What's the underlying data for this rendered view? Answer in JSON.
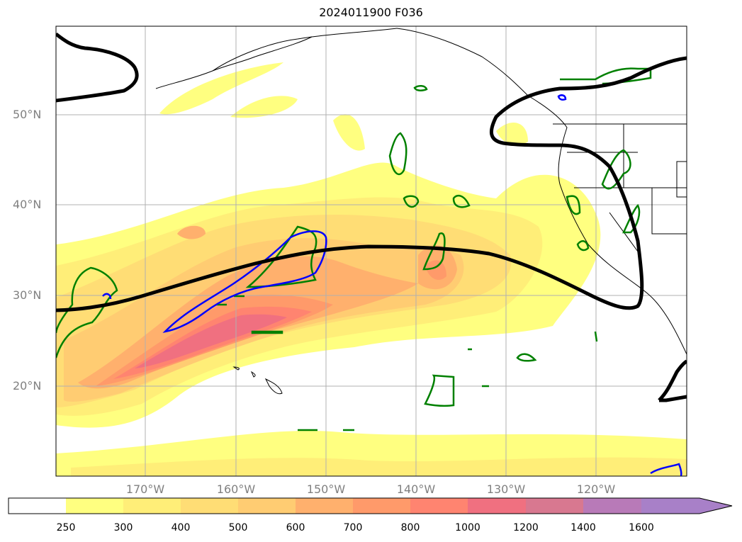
{
  "title": "2024011900 F036",
  "lat_labels": [
    "50°N",
    "40°N",
    "30°N",
    "20°N"
  ],
  "lon_labels": [
    "170°W",
    "160°W",
    "150°W",
    "140°W",
    "130°W",
    "120°W"
  ],
  "colorbar": {
    "labels": [
      "250",
      "300",
      "400",
      "500",
      "600",
      "700",
      "800",
      "1000",
      "1200",
      "1400",
      "1600"
    ],
    "colors": [
      "#ffffff",
      "#ffff80",
      "#ffee78",
      "#ffdd75",
      "#ffcc72",
      "#ffb06d",
      "#ff9a6a",
      "#ff8470",
      "#f07080",
      "#d87890",
      "#b87ab8",
      "#a880c8"
    ],
    "extend": "max"
  },
  "contours": {
    "black": "#000000",
    "blue": "#0000ff",
    "green": "#008000"
  }
}
